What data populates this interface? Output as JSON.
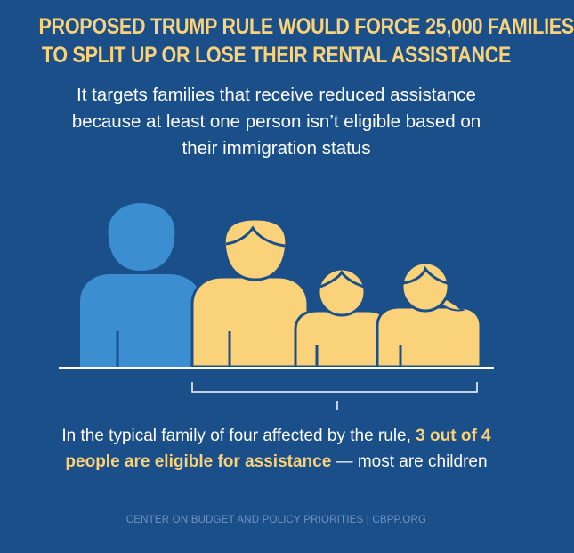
{
  "headline": {
    "line1": "PROPOSED TRUMP RULE WOULD FORCE 25,000 FAMILIES",
    "line2": "TO SPLIT UP OR LOSE THEIR RENTAL ASSISTANCE"
  },
  "subhead": {
    "line1": "It targets families that receive reduced assistance",
    "line2": "because at least one person isn’t eligible based on",
    "line3": "their immigration status"
  },
  "family_figures": [
    {
      "role": "ineligible adult",
      "color": "#3b8fd0"
    },
    {
      "role": "eligible adult",
      "color": "#f9d27a"
    },
    {
      "role": "eligible child",
      "color": "#f9d27a"
    },
    {
      "role": "eligible child",
      "color": "#f9d27a"
    }
  ],
  "caption": {
    "line1_text": "In the typical family of four affected by the rule,",
    "line1_highlight": "3 out of 4",
    "line2_highlight": "people are eligible for assistance",
    "line2_text": " — most are children"
  },
  "footer": "CENTER ON BUDGET AND POLICY PRIORITIES | CBPP.ORG",
  "colors": {
    "background": "#1b4f8a",
    "accent": "#f9d27a",
    "ineligible": "#3b8fd0",
    "footer": "#6f93c4"
  }
}
